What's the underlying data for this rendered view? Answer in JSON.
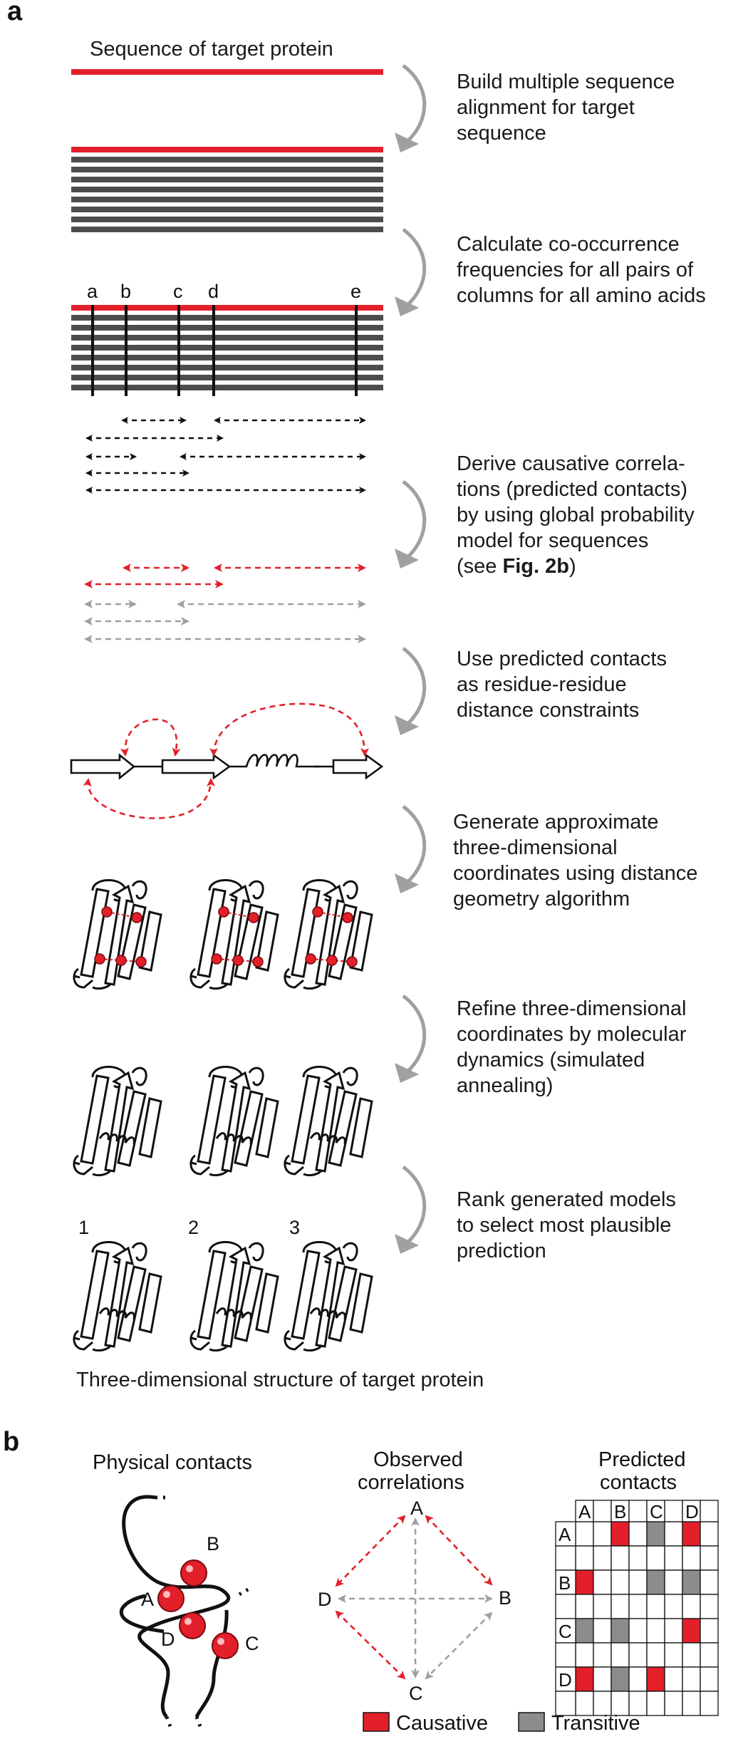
{
  "panel_a": {
    "label": "a",
    "sequence_title": "Sequence of target protein",
    "steps": [
      {
        "lines": [
          "Build multiple sequence",
          "alignment for target",
          "sequence"
        ]
      },
      {
        "lines": [
          "Calculate co-occurrence",
          "frequencies for all pairs of",
          "columns for all amino acids"
        ]
      },
      {
        "lines": [
          "Derive causative correla-",
          "tions (predicted contacts)",
          "by using global probability",
          "model for sequences"
        ],
        "ref_prefix": "(see ",
        "ref_bold": "Fig. 2b",
        "ref_suffix": ")"
      },
      {
        "lines": [
          "Use predicted contacts",
          "as residue-residue",
          "distance constraints"
        ]
      },
      {
        "lines": [
          "Generate approximate",
          "three-dimensional",
          "coordinates using distance",
          "geometry algorithm"
        ]
      },
      {
        "lines": [
          "Refine three-dimensional",
          "coordinates by molecular",
          "dynamics (simulated",
          "annealing)"
        ]
      },
      {
        "lines": [
          "Rank generated models",
          "to select most plausible",
          "prediction"
        ]
      }
    ],
    "columns": [
      "a",
      "b",
      "c",
      "d",
      "e"
    ],
    "model_numbers": [
      "1",
      "2",
      "3"
    ],
    "final_caption": "Three-dimensional structure of target protein"
  },
  "panel_b": {
    "label": "b",
    "physical_title": "Physical contacts",
    "observed_title": [
      "Observed",
      "correlations"
    ],
    "predicted_title": [
      "Predicted",
      "contacts"
    ],
    "residues": [
      "A",
      "B",
      "C",
      "D"
    ],
    "matrix": [
      [
        "",
        "causative",
        "transitive",
        "causative"
      ],
      [
        "causative",
        "",
        "transitive",
        "transitive"
      ],
      [
        "transitive",
        "transitive",
        "",
        "causative"
      ],
      [
        "causative",
        "transitive",
        "causative",
        ""
      ]
    ],
    "legend": [
      {
        "label": "Causative",
        "color": "#e3202a"
      },
      {
        "label": "Transitive",
        "color": "#8c8c8c"
      }
    ]
  },
  "colors": {
    "red": "#e3202a",
    "dark_gray": "#4d4d4d",
    "arrow_gray": "#a0a0a0",
    "black": "#111111"
  }
}
